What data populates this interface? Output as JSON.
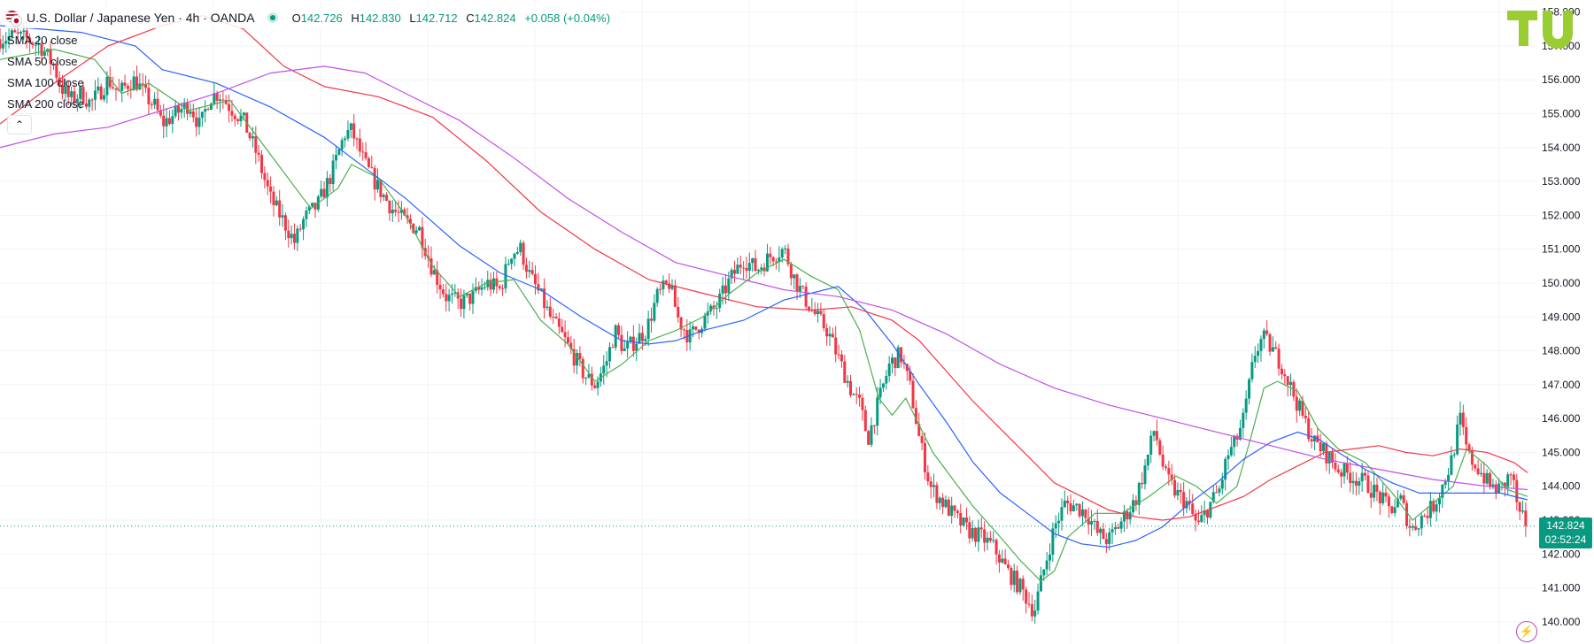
{
  "header": {
    "symbol": "U.S. Dollar / Japanese Yen · 4h · OANDA",
    "ohlc": [
      {
        "label": "O",
        "value": "142.726"
      },
      {
        "label": "H",
        "value": "142.830"
      },
      {
        "label": "L",
        "value": "142.712"
      },
      {
        "label": "C",
        "value": "142.824"
      },
      {
        "label": "",
        "value": "+0.058 (+0.04%)"
      }
    ]
  },
  "legend": [
    {
      "label": "SMA 20 close",
      "color": "#4caf50"
    },
    {
      "label": "SMA 50 close",
      "color": "#2962ff"
    },
    {
      "label": "SMA 100 close",
      "color": "#f23645"
    },
    {
      "label": "SMA 200 close",
      "color": "#c34ee6"
    }
  ],
  "price_tag": {
    "price": "142.824",
    "countdown": "02:52:24"
  },
  "colors": {
    "up": "#089981",
    "down": "#f23645",
    "sma20": "#4caf50",
    "sma50": "#2962ff",
    "sma100": "#f23645",
    "sma200": "#c34ee6"
  },
  "icons": {
    "logo": "tradingview-logo",
    "collapse": "chevron-up-icon",
    "bolt": "lightning-icon"
  },
  "chart_data": {
    "type": "line",
    "title": "U.S. Dollar / Japanese Yen · 4h · OANDA",
    "ylim": [
      139.5,
      158.2
    ],
    "y_ticks": [
      "140.000",
      "141.000",
      "142.000",
      "143.000",
      "144.000",
      "145.000",
      "146.000",
      "147.000",
      "148.000",
      "149.000",
      "150.000",
      "151.000",
      "152.000",
      "153.000",
      "154.000",
      "155.000",
      "156.000",
      "157.000",
      "158.000"
    ],
    "y_tick_values": [
      140,
      141,
      142,
      143,
      144,
      145,
      146,
      147,
      148,
      149,
      150,
      151,
      152,
      153,
      154,
      155,
      156,
      157,
      158
    ],
    "last_price": 142.824,
    "price_path": [
      [
        0,
        157.2
      ],
      [
        10,
        157.3
      ],
      [
        20,
        157.2
      ],
      [
        30,
        157.0
      ],
      [
        40,
        156.4
      ],
      [
        45,
        155.8
      ],
      [
        52,
        155.4
      ],
      [
        60,
        155.6
      ],
      [
        67,
        155.3
      ],
      [
        75,
        155.7
      ],
      [
        80,
        156.0
      ],
      [
        88,
        155.6
      ],
      [
        95,
        155.9
      ],
      [
        100,
        156.0
      ],
      [
        108,
        155.5
      ],
      [
        115,
        155.2
      ],
      [
        120,
        154.7
      ],
      [
        130,
        155.0
      ],
      [
        140,
        155.3
      ],
      [
        148,
        154.6
      ],
      [
        155,
        155.5
      ],
      [
        162,
        155.6
      ],
      [
        170,
        155.2
      ],
      [
        180,
        154.8
      ],
      [
        190,
        153.8
      ],
      [
        200,
        152.5
      ],
      [
        210,
        151.8
      ],
      [
        218,
        151.2
      ],
      [
        225,
        151.9
      ],
      [
        235,
        152.3
      ],
      [
        245,
        153.2
      ],
      [
        255,
        154.4
      ],
      [
        260,
        154.5
      ],
      [
        270,
        153.5
      ],
      [
        280,
        152.8
      ],
      [
        290,
        152.2
      ],
      [
        300,
        151.8
      ],
      [
        310,
        151.6
      ],
      [
        320,
        150.4
      ],
      [
        330,
        149.6
      ],
      [
        340,
        149.4
      ],
      [
        350,
        149.6
      ],
      [
        360,
        150.0
      ],
      [
        370,
        149.8
      ],
      [
        378,
        150.9
      ],
      [
        385,
        151.0
      ],
      [
        392,
        150.2
      ],
      [
        400,
        149.6
      ],
      [
        408,
        148.9
      ],
      [
        415,
        148.5
      ],
      [
        425,
        147.8
      ],
      [
        432,
        147.3
      ],
      [
        440,
        147.0
      ],
      [
        448,
        147.6
      ],
      [
        455,
        148.6
      ],
      [
        462,
        148.0
      ],
      [
        470,
        148.3
      ],
      [
        478,
        148.6
      ],
      [
        486,
        149.6
      ],
      [
        495,
        150.0
      ],
      [
        502,
        148.9
      ],
      [
        510,
        148.4
      ],
      [
        520,
        148.9
      ],
      [
        530,
        149.3
      ],
      [
        540,
        150.1
      ],
      [
        550,
        150.7
      ],
      [
        560,
        150.4
      ],
      [
        570,
        150.8
      ],
      [
        580,
        151.0
      ],
      [
        588,
        150.1
      ],
      [
        596,
        149.5
      ],
      [
        604,
        149.0
      ],
      [
        612,
        148.6
      ],
      [
        622,
        147.6
      ],
      [
        630,
        146.8
      ],
      [
        636,
        146.4
      ],
      [
        642,
        145.4
      ],
      [
        650,
        146.5
      ],
      [
        658,
        147.6
      ],
      [
        666,
        147.9
      ],
      [
        674,
        146.8
      ],
      [
        680,
        145.4
      ],
      [
        688,
        144.0
      ],
      [
        696,
        143.6
      ],
      [
        706,
        143.1
      ],
      [
        716,
        142.7
      ],
      [
        726,
        142.5
      ],
      [
        735,
        142.2
      ],
      [
        745,
        141.5
      ],
      [
        755,
        141.0
      ],
      [
        765,
        140.3
      ],
      [
        772,
        141.5
      ],
      [
        780,
        142.8
      ],
      [
        788,
        143.5
      ],
      [
        796,
        143.4
      ],
      [
        804,
        143.2
      ],
      [
        812,
        142.6
      ],
      [
        820,
        142.4
      ],
      [
        830,
        143.0
      ],
      [
        840,
        143.6
      ],
      [
        848,
        144.7
      ],
      [
        854,
        145.7
      ],
      [
        862,
        144.3
      ],
      [
        870,
        143.8
      ],
      [
        878,
        143.5
      ],
      [
        886,
        142.8
      ],
      [
        894,
        143.4
      ],
      [
        902,
        143.9
      ],
      [
        908,
        144.9
      ],
      [
        914,
        145.3
      ],
      [
        920,
        146.0
      ],
      [
        928,
        147.9
      ],
      [
        934,
        148.4
      ],
      [
        940,
        148.1
      ],
      [
        948,
        147.6
      ],
      [
        956,
        146.8
      ],
      [
        964,
        146.0
      ],
      [
        972,
        145.3
      ],
      [
        980,
        145.0
      ],
      [
        990,
        144.5
      ],
      [
        1000,
        144.3
      ],
      [
        1010,
        144.1
      ],
      [
        1020,
        143.7
      ],
      [
        1028,
        143.3
      ],
      [
        1036,
        143.6
      ],
      [
        1044,
        142.7
      ],
      [
        1052,
        143.1
      ],
      [
        1060,
        143.4
      ],
      [
        1068,
        144.1
      ],
      [
        1074,
        144.8
      ],
      [
        1080,
        146.0
      ],
      [
        1086,
        144.9
      ],
      [
        1094,
        144.5
      ],
      [
        1102,
        144.0
      ],
      [
        1110,
        143.9
      ],
      [
        1118,
        144.4
      ],
      [
        1124,
        143.1
      ],
      [
        1130,
        142.9
      ]
    ],
    "series": [
      {
        "name": "SMA 20 close",
        "color": "#4caf50",
        "values": [
          [
            0,
            156.6
          ],
          [
            40,
            156.9
          ],
          [
            70,
            156.6
          ],
          [
            90,
            155.6
          ],
          [
            110,
            155.9
          ],
          [
            140,
            155.1
          ],
          [
            170,
            155.4
          ],
          [
            200,
            153.8
          ],
          [
            230,
            152.2
          ],
          [
            250,
            152.8
          ],
          [
            260,
            153.5
          ],
          [
            280,
            153.1
          ],
          [
            300,
            152.0
          ],
          [
            320,
            150.5
          ],
          [
            340,
            149.6
          ],
          [
            360,
            150.0
          ],
          [
            380,
            150.1
          ],
          [
            400,
            148.9
          ],
          [
            420,
            148.2
          ],
          [
            440,
            147.1
          ],
          [
            460,
            147.6
          ],
          [
            480,
            148.3
          ],
          [
            500,
            148.6
          ],
          [
            520,
            149.0
          ],
          [
            540,
            149.7
          ],
          [
            560,
            150.3
          ],
          [
            580,
            150.7
          ],
          [
            600,
            150.2
          ],
          [
            620,
            149.8
          ],
          [
            636,
            148.6
          ],
          [
            650,
            146.6
          ],
          [
            660,
            146.1
          ],
          [
            670,
            146.6
          ],
          [
            690,
            145.0
          ],
          [
            720,
            143.4
          ],
          [
            740,
            142.5
          ],
          [
            755,
            141.8
          ],
          [
            770,
            141.2
          ],
          [
            780,
            141.5
          ],
          [
            790,
            142.5
          ],
          [
            810,
            143.2
          ],
          [
            830,
            143.2
          ],
          [
            850,
            143.7
          ],
          [
            870,
            144.3
          ],
          [
            885,
            144.0
          ],
          [
            900,
            143.5
          ],
          [
            915,
            144.0
          ],
          [
            925,
            145.4
          ],
          [
            935,
            146.9
          ],
          [
            945,
            147.1
          ],
          [
            960,
            146.8
          ],
          [
            975,
            145.7
          ],
          [
            990,
            145.1
          ],
          [
            1010,
            144.7
          ],
          [
            1030,
            143.8
          ],
          [
            1045,
            143.0
          ],
          [
            1060,
            143.5
          ],
          [
            1075,
            144.0
          ],
          [
            1085,
            145.1
          ],
          [
            1100,
            144.6
          ],
          [
            1115,
            143.9
          ],
          [
            1130,
            143.7
          ]
        ]
      },
      {
        "name": "SMA 50 close",
        "color": "#2962ff",
        "values": [
          [
            0,
            157.6
          ],
          [
            60,
            157.4
          ],
          [
            100,
            157.0
          ],
          [
            120,
            156.3
          ],
          [
            160,
            155.9
          ],
          [
            200,
            155.2
          ],
          [
            240,
            154.3
          ],
          [
            270,
            153.4
          ],
          [
            300,
            152.5
          ],
          [
            340,
            151.1
          ],
          [
            370,
            150.3
          ],
          [
            400,
            149.8
          ],
          [
            430,
            149.0
          ],
          [
            460,
            148.3
          ],
          [
            480,
            148.2
          ],
          [
            500,
            148.3
          ],
          [
            520,
            148.6
          ],
          [
            550,
            148.9
          ],
          [
            580,
            149.5
          ],
          [
            600,
            149.7
          ],
          [
            620,
            149.9
          ],
          [
            640,
            149.2
          ],
          [
            660,
            148.2
          ],
          [
            680,
            147.0
          ],
          [
            700,
            145.9
          ],
          [
            720,
            144.7
          ],
          [
            740,
            143.8
          ],
          [
            760,
            143.2
          ],
          [
            780,
            142.6
          ],
          [
            800,
            142.3
          ],
          [
            820,
            142.2
          ],
          [
            840,
            142.4
          ],
          [
            860,
            142.8
          ],
          [
            880,
            143.5
          ],
          [
            900,
            144.1
          ],
          [
            920,
            144.8
          ],
          [
            940,
            145.3
          ],
          [
            960,
            145.6
          ],
          [
            975,
            145.4
          ],
          [
            990,
            145.0
          ],
          [
            1010,
            144.5
          ],
          [
            1030,
            144.1
          ],
          [
            1050,
            143.8
          ],
          [
            1070,
            143.8
          ],
          [
            1090,
            143.8
          ],
          [
            1110,
            143.8
          ],
          [
            1130,
            143.6
          ]
        ]
      },
      {
        "name": "SMA 100 close",
        "color": "#f23645",
        "values": [
          [
            0,
            154.7
          ],
          [
            40,
            155.9
          ],
          [
            80,
            157.0
          ],
          [
            120,
            157.6
          ],
          [
            150,
            157.9
          ],
          [
            180,
            157.5
          ],
          [
            210,
            156.4
          ],
          [
            240,
            155.8
          ],
          [
            280,
            155.5
          ],
          [
            320,
            154.9
          ],
          [
            360,
            153.6
          ],
          [
            400,
            152.1
          ],
          [
            440,
            151.0
          ],
          [
            480,
            150.1
          ],
          [
            520,
            149.7
          ],
          [
            560,
            149.3
          ],
          [
            600,
            149.2
          ],
          [
            630,
            149.3
          ],
          [
            660,
            148.9
          ],
          [
            680,
            148.3
          ],
          [
            700,
            147.4
          ],
          [
            720,
            146.5
          ],
          [
            740,
            145.7
          ],
          [
            760,
            144.9
          ],
          [
            780,
            144.1
          ],
          [
            800,
            143.7
          ],
          [
            820,
            143.3
          ],
          [
            840,
            143.1
          ],
          [
            860,
            143.0
          ],
          [
            880,
            143.1
          ],
          [
            900,
            143.4
          ],
          [
            920,
            143.7
          ],
          [
            940,
            144.2
          ],
          [
            960,
            144.6
          ],
          [
            980,
            145.0
          ],
          [
            1000,
            145.1
          ],
          [
            1020,
            145.2
          ],
          [
            1040,
            145.0
          ],
          [
            1060,
            144.9
          ],
          [
            1080,
            145.1
          ],
          [
            1100,
            145.0
          ],
          [
            1120,
            144.7
          ],
          [
            1130,
            144.4
          ]
        ]
      },
      {
        "name": "SMA 200 close",
        "color": "#c34ee6",
        "values": [
          [
            0,
            154.0
          ],
          [
            40,
            154.4
          ],
          [
            80,
            154.6
          ],
          [
            120,
            155.1
          ],
          [
            160,
            155.6
          ],
          [
            200,
            156.2
          ],
          [
            240,
            156.4
          ],
          [
            270,
            156.2
          ],
          [
            300,
            155.6
          ],
          [
            340,
            154.8
          ],
          [
            380,
            153.7
          ],
          [
            420,
            152.5
          ],
          [
            460,
            151.5
          ],
          [
            500,
            150.6
          ],
          [
            540,
            150.2
          ],
          [
            580,
            149.8
          ],
          [
            620,
            149.6
          ],
          [
            660,
            149.2
          ],
          [
            700,
            148.5
          ],
          [
            740,
            147.6
          ],
          [
            780,
            146.9
          ],
          [
            820,
            146.4
          ],
          [
            860,
            146.0
          ],
          [
            900,
            145.6
          ],
          [
            940,
            145.2
          ],
          [
            980,
            144.8
          ],
          [
            1020,
            144.5
          ],
          [
            1060,
            144.2
          ],
          [
            1100,
            144.0
          ],
          [
            1130,
            143.9
          ]
        ]
      }
    ]
  }
}
